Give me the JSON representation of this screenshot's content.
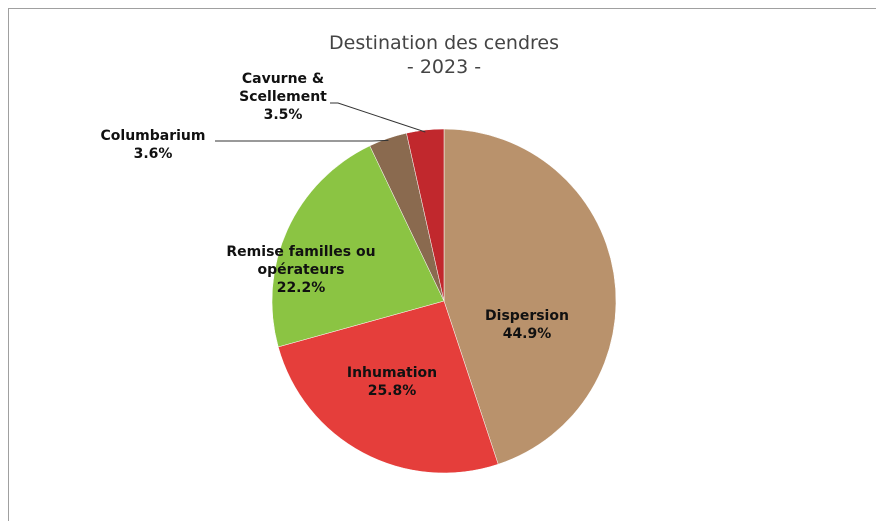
{
  "chart_data": {
    "type": "pie",
    "title": "Destination des cendres",
    "subtitle": "- 2023 -",
    "categories": [
      "Dispersion",
      "Inhumation",
      "Remise familles ou opérateurs",
      "Columbarium",
      "Cavurne & Scellement"
    ],
    "values": [
      44.9,
      25.8,
      22.2,
      3.6,
      3.5
    ],
    "value_labels": [
      "44.9%",
      "25.8%",
      "22.2%",
      "3.6%",
      "3.5%"
    ],
    "colors": [
      "#b9926c",
      "#e53e3b",
      "#8bc443",
      "#8a6a4f",
      "#c1282d"
    ]
  }
}
